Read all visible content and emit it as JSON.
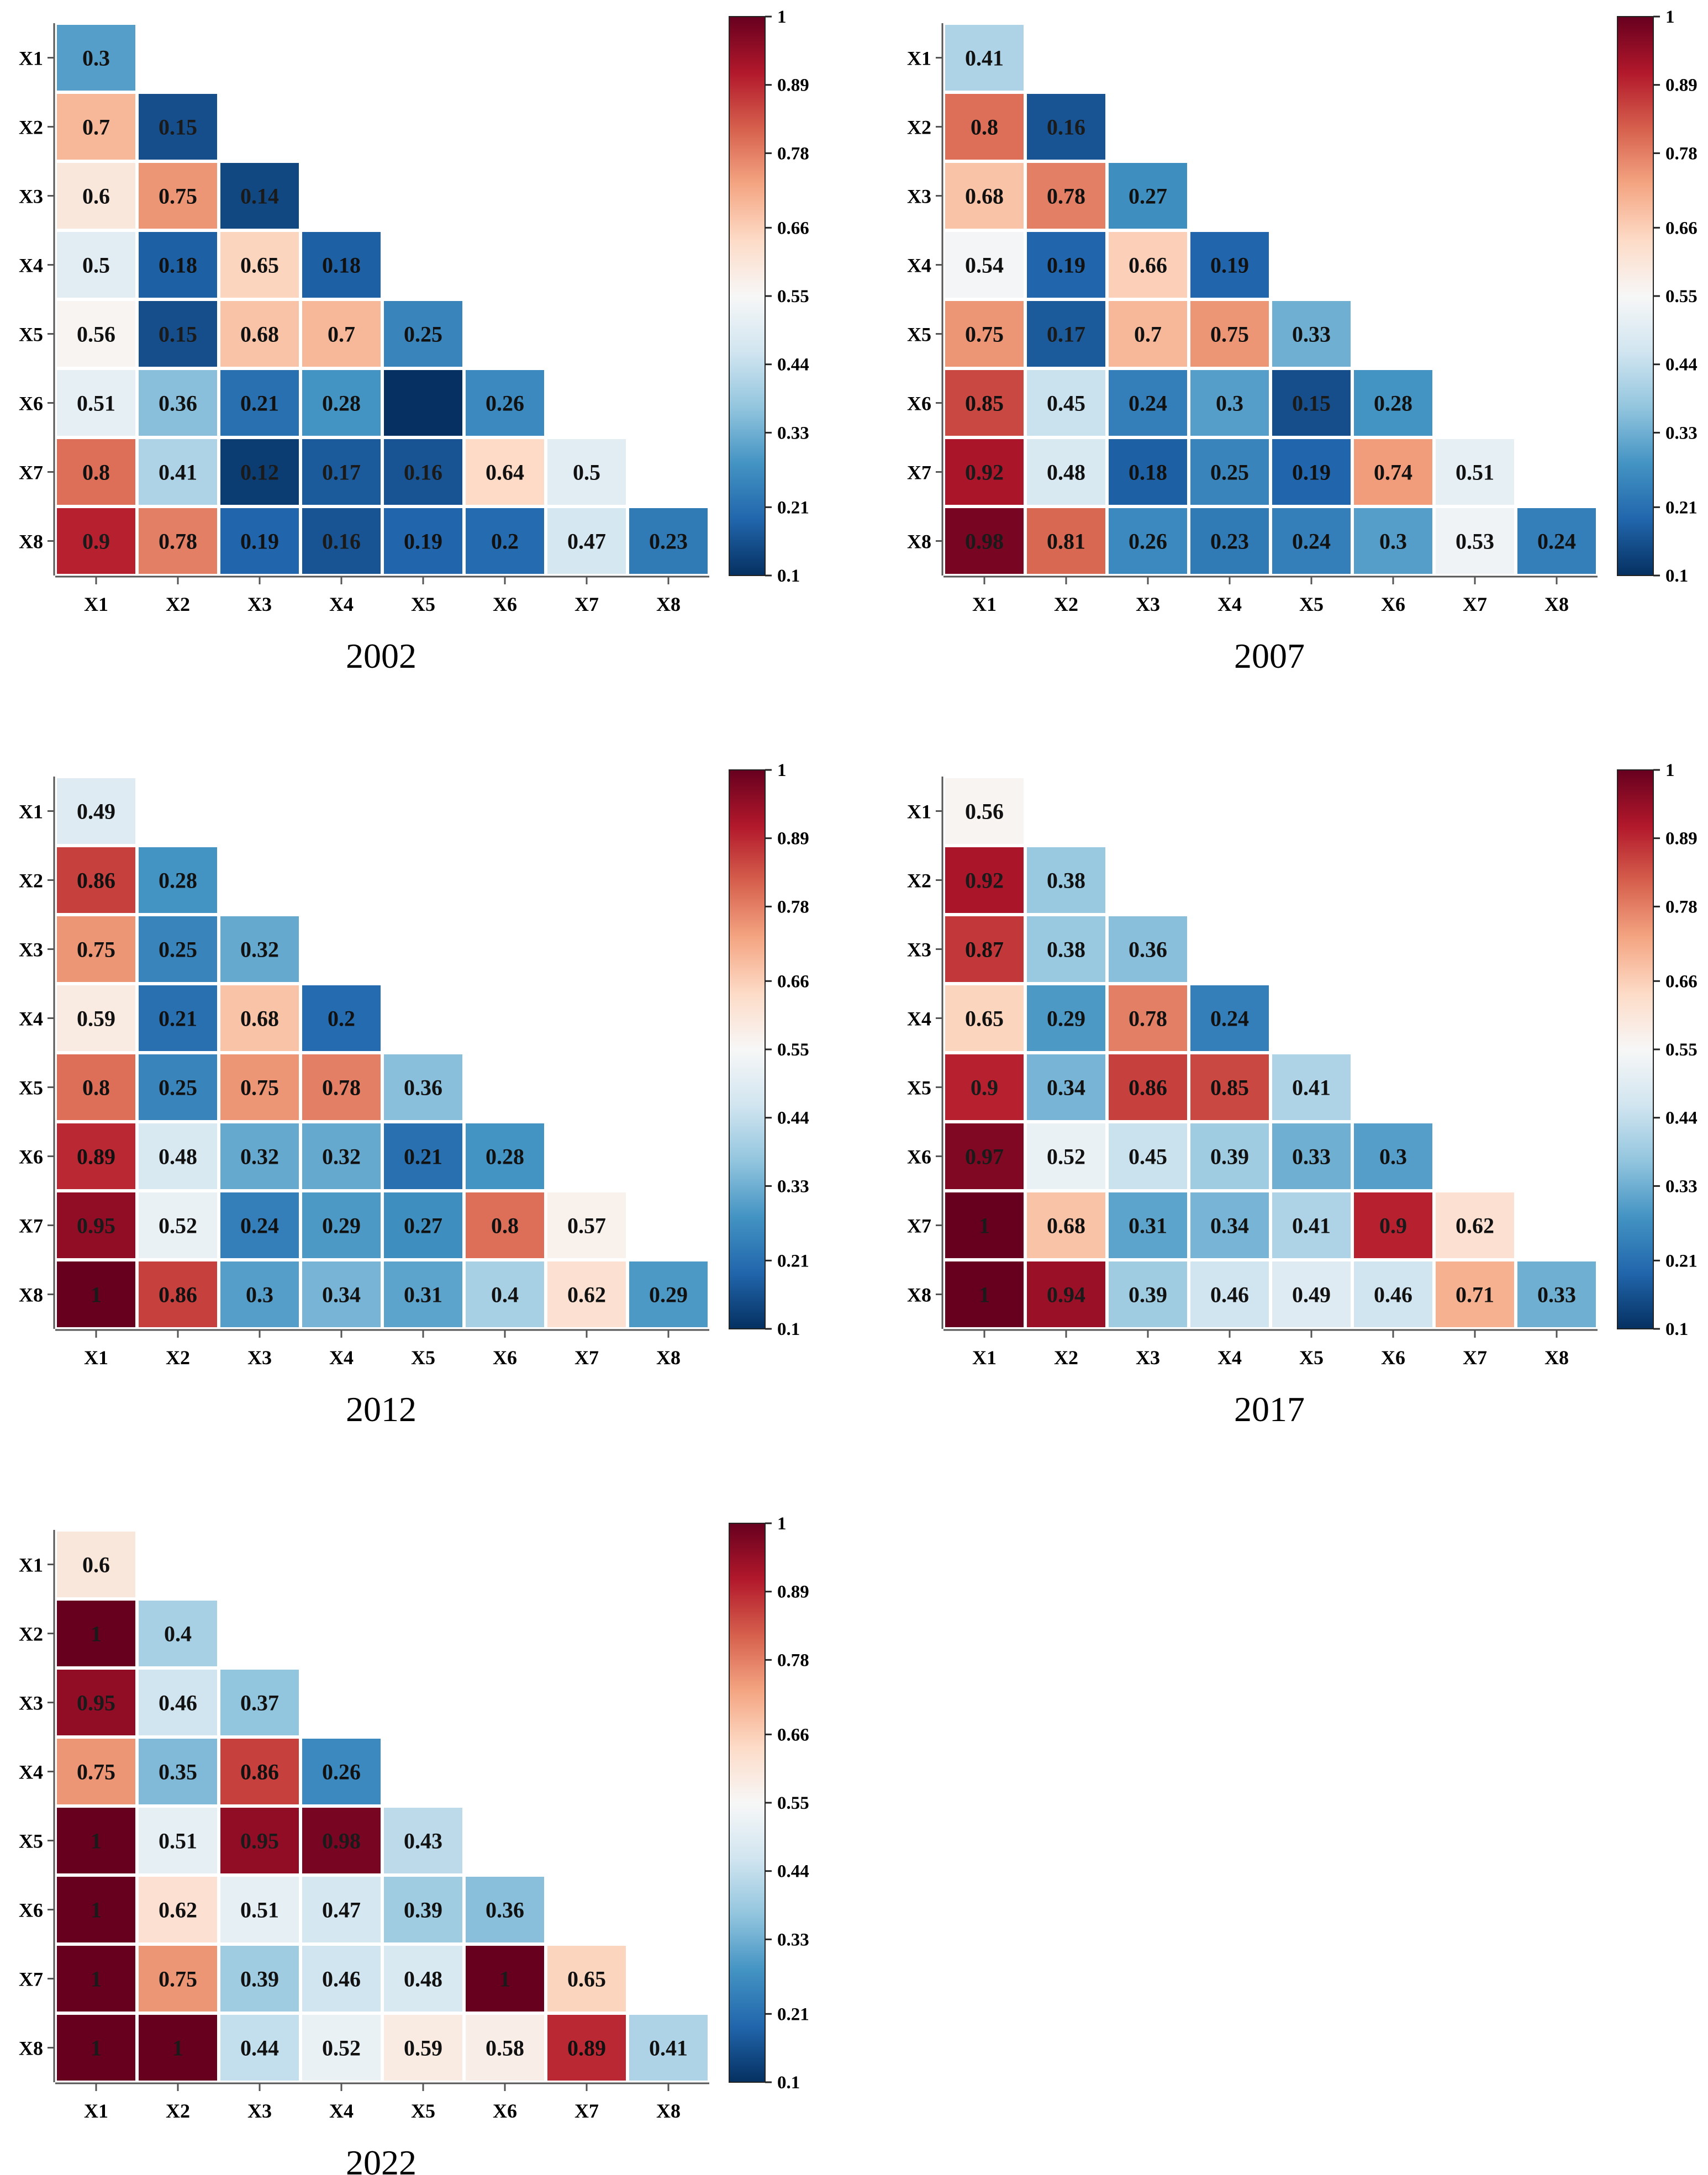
{
  "colorscale": {
    "name": "RdBu_r",
    "stops": [
      "#053061",
      "#2166ac",
      "#4393c3",
      "#92c5de",
      "#d1e5f0",
      "#f7f7f7",
      "#fddbc7",
      "#f4a582",
      "#d6604d",
      "#b2182b",
      "#67001f"
    ],
    "min": 0.1,
    "max": 1
  },
  "chart_data": [
    {
      "type": "heatmap",
      "title": "2002",
      "x_labels": [
        "X1",
        "X2",
        "X3",
        "X4",
        "X5",
        "X6",
        "X7",
        "X8"
      ],
      "y_labels": [
        "X1",
        "X2",
        "X3",
        "X4",
        "X5",
        "X6",
        "X7",
        "X8"
      ],
      "values": [
        [
          0.3
        ],
        [
          0.7,
          0.15
        ],
        [
          0.6,
          0.75,
          0.14
        ],
        [
          0.5,
          0.18,
          0.65,
          0.18
        ],
        [
          0.56,
          0.15,
          0.68,
          0.7,
          0.25
        ],
        [
          0.51,
          0.36,
          0.21,
          0.28,
          0.1,
          0.26
        ],
        [
          0.8,
          0.41,
          0.12,
          0.17,
          0.16,
          0.64,
          0.5
        ],
        [
          0.9,
          0.78,
          0.19,
          0.16,
          0.19,
          0.2,
          0.47,
          0.23
        ]
      ],
      "cell_text": [
        [
          "0.3"
        ],
        [
          "0.7",
          "0.15"
        ],
        [
          "0.6",
          "0.75",
          "0.14"
        ],
        [
          "0.5",
          "0.18",
          "0.65",
          "0.18"
        ],
        [
          "0.56",
          "0.15",
          "0.68",
          "0.7",
          "0.25"
        ],
        [
          "0.51",
          "0.36",
          "0.21",
          "0.28",
          "",
          "0.26"
        ],
        [
          "0.8",
          "0.41",
          "0.12",
          "0.17",
          "0.16",
          "0.64",
          "0.5"
        ],
        [
          "0.9",
          "0.78",
          "0.19",
          "0.16",
          "0.19",
          "0.2",
          "0.47",
          "0.23"
        ]
      ],
      "colorbar": {
        "range": [
          0.1,
          1
        ],
        "tick_labels": [
          "0.1",
          "0.21",
          "0.33",
          "0.44",
          "0.55",
          "0.66",
          "0.78",
          "0.89",
          "1"
        ]
      }
    },
    {
      "type": "heatmap",
      "title": "2007",
      "x_labels": [
        "X1",
        "X2",
        "X3",
        "X4",
        "X5",
        "X6",
        "X7",
        "X8"
      ],
      "y_labels": [
        "X1",
        "X2",
        "X3",
        "X4",
        "X5",
        "X6",
        "X7",
        "X8"
      ],
      "values": [
        [
          0.41
        ],
        [
          0.8,
          0.16
        ],
        [
          0.68,
          0.78,
          0.27
        ],
        [
          0.54,
          0.19,
          0.66,
          0.19
        ],
        [
          0.75,
          0.17,
          0.7,
          0.75,
          0.33
        ],
        [
          0.85,
          0.45,
          0.24,
          0.3,
          0.15,
          0.28
        ],
        [
          0.92,
          0.48,
          0.18,
          0.25,
          0.19,
          0.74,
          0.51
        ],
        [
          0.98,
          0.81,
          0.26,
          0.23,
          0.24,
          0.3,
          0.53,
          0.24
        ]
      ],
      "cell_text": [
        [
          "0.41"
        ],
        [
          "0.8",
          "0.16"
        ],
        [
          "0.68",
          "0.78",
          "0.27"
        ],
        [
          "0.54",
          "0.19",
          "0.66",
          "0.19"
        ],
        [
          "0.75",
          "0.17",
          "0.7",
          "0.75",
          "0.33"
        ],
        [
          "0.85",
          "0.45",
          "0.24",
          "0.3",
          "0.15",
          "0.28"
        ],
        [
          "0.92",
          "0.48",
          "0.18",
          "0.25",
          "0.19",
          "0.74",
          "0.51"
        ],
        [
          "0.98",
          "0.81",
          "0.26",
          "0.23",
          "0.24",
          "0.3",
          "0.53",
          "0.24"
        ]
      ],
      "colorbar": {
        "range": [
          0.1,
          1
        ],
        "tick_labels": [
          "0.1",
          "0.21",
          "0.33",
          "0.44",
          "0.55",
          "0.66",
          "0.78",
          "0.89",
          "1"
        ]
      }
    },
    {
      "type": "heatmap",
      "title": "2012",
      "x_labels": [
        "X1",
        "X2",
        "X3",
        "X4",
        "X5",
        "X6",
        "X7",
        "X8"
      ],
      "y_labels": [
        "X1",
        "X2",
        "X3",
        "X4",
        "X5",
        "X6",
        "X7",
        "X8"
      ],
      "values": [
        [
          0.49
        ],
        [
          0.86,
          0.28
        ],
        [
          0.75,
          0.25,
          0.32
        ],
        [
          0.59,
          0.21,
          0.68,
          0.2
        ],
        [
          0.8,
          0.25,
          0.75,
          0.78,
          0.36
        ],
        [
          0.89,
          0.48,
          0.32,
          0.32,
          0.21,
          0.28
        ],
        [
          0.95,
          0.52,
          0.24,
          0.29,
          0.27,
          0.8,
          0.57
        ],
        [
          1,
          0.86,
          0.3,
          0.34,
          0.31,
          0.4,
          0.62,
          0.29
        ]
      ],
      "cell_text": [
        [
          "0.49"
        ],
        [
          "0.86",
          "0.28"
        ],
        [
          "0.75",
          "0.25",
          "0.32"
        ],
        [
          "0.59",
          "0.21",
          "0.68",
          "0.2"
        ],
        [
          "0.8",
          "0.25",
          "0.75",
          "0.78",
          "0.36"
        ],
        [
          "0.89",
          "0.48",
          "0.32",
          "0.32",
          "0.21",
          "0.28"
        ],
        [
          "0.95",
          "0.52",
          "0.24",
          "0.29",
          "0.27",
          "0.8",
          "0.57"
        ],
        [
          "1",
          "0.86",
          "0.3",
          "0.34",
          "0.31",
          "0.4",
          "0.62",
          "0.29"
        ]
      ],
      "colorbar": {
        "range": [
          0.1,
          1
        ],
        "tick_labels": [
          "0.1",
          "0.21",
          "0.33",
          "0.44",
          "0.55",
          "0.66",
          "0.78",
          "0.89",
          "1"
        ]
      }
    },
    {
      "type": "heatmap",
      "title": "2017",
      "x_labels": [
        "X1",
        "X2",
        "X3",
        "X4",
        "X5",
        "X6",
        "X7",
        "X8"
      ],
      "y_labels": [
        "X1",
        "X2",
        "X3",
        "X4",
        "X5",
        "X6",
        "X7",
        "X8"
      ],
      "values": [
        [
          0.56
        ],
        [
          0.92,
          0.38
        ],
        [
          0.87,
          0.38,
          0.36
        ],
        [
          0.65,
          0.29,
          0.78,
          0.24
        ],
        [
          0.9,
          0.34,
          0.86,
          0.85,
          0.41
        ],
        [
          0.97,
          0.52,
          0.45,
          0.39,
          0.33,
          0.3
        ],
        [
          1,
          0.68,
          0.31,
          0.34,
          0.41,
          0.9,
          0.62
        ],
        [
          1,
          0.94,
          0.39,
          0.46,
          0.49,
          0.46,
          0.71,
          0.33
        ]
      ],
      "cell_text": [
        [
          "0.56"
        ],
        [
          "0.92",
          "0.38"
        ],
        [
          "0.87",
          "0.38",
          "0.36"
        ],
        [
          "0.65",
          "0.29",
          "0.78",
          "0.24"
        ],
        [
          "0.9",
          "0.34",
          "0.86",
          "0.85",
          "0.41"
        ],
        [
          "0.97",
          "0.52",
          "0.45",
          "0.39",
          "0.33",
          "0.3"
        ],
        [
          "1",
          "0.68",
          "0.31",
          "0.34",
          "0.41",
          "0.9",
          "0.62"
        ],
        [
          "1",
          "0.94",
          "0.39",
          "0.46",
          "0.49",
          "0.46",
          "0.71",
          "0.33"
        ]
      ],
      "colorbar": {
        "range": [
          0.1,
          1
        ],
        "tick_labels": [
          "0.1",
          "0.21",
          "0.33",
          "0.44",
          "0.55",
          "0.66",
          "0.78",
          "0.89",
          "1"
        ]
      }
    },
    {
      "type": "heatmap",
      "title": "2022",
      "x_labels": [
        "X1",
        "X2",
        "X3",
        "X4",
        "X5",
        "X6",
        "X7",
        "X8"
      ],
      "y_labels": [
        "X1",
        "X2",
        "X3",
        "X4",
        "X5",
        "X6",
        "X7",
        "X8"
      ],
      "values": [
        [
          0.6
        ],
        [
          1,
          0.4
        ],
        [
          0.95,
          0.46,
          0.37
        ],
        [
          0.75,
          0.35,
          0.86,
          0.26
        ],
        [
          1,
          0.51,
          0.95,
          0.98,
          0.43
        ],
        [
          1,
          0.62,
          0.51,
          0.47,
          0.39,
          0.36
        ],
        [
          1,
          0.75,
          0.39,
          0.46,
          0.48,
          1,
          0.65
        ],
        [
          1,
          1,
          0.44,
          0.52,
          0.59,
          0.58,
          0.89,
          0.41
        ]
      ],
      "cell_text": [
        [
          "0.6"
        ],
        [
          "1",
          "0.4"
        ],
        [
          "0.95",
          "0.46",
          "0.37"
        ],
        [
          "0.75",
          "0.35",
          "0.86",
          "0.26"
        ],
        [
          "1",
          "0.51",
          "0.95",
          "0.98",
          "0.43"
        ],
        [
          "1",
          "0.62",
          "0.51",
          "0.47",
          "0.39",
          "0.36"
        ],
        [
          "1",
          "0.75",
          "0.39",
          "0.46",
          "0.48",
          "1",
          "0.65"
        ],
        [
          "1",
          "1",
          "0.44",
          "0.52",
          "0.59",
          "0.58",
          "0.89",
          "0.41"
        ]
      ],
      "colorbar": {
        "range": [
          0.1,
          1
        ],
        "tick_labels": [
          "0.1",
          "0.21",
          "0.33",
          "0.44",
          "0.55",
          "0.66",
          "0.78",
          "0.89",
          "1"
        ]
      }
    }
  ]
}
